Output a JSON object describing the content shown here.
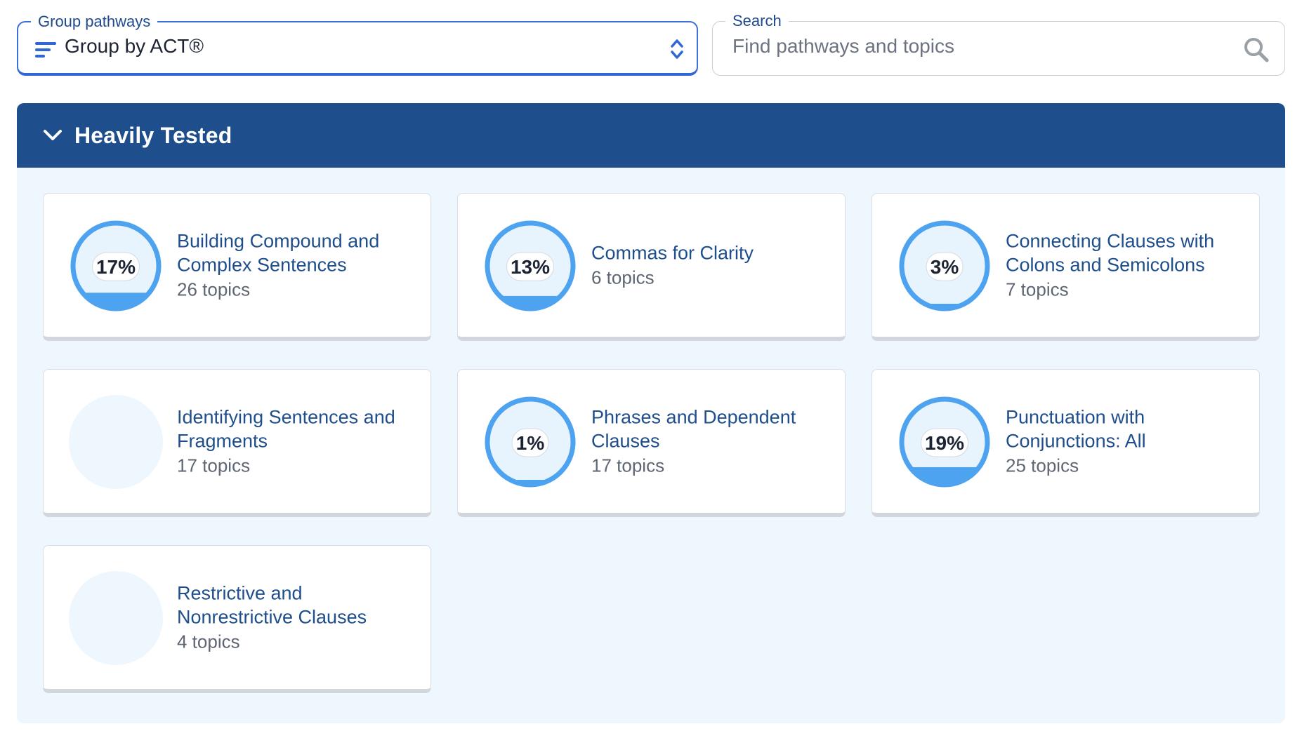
{
  "group_field": {
    "legend": "Group pathways",
    "value": "Group by ACT®"
  },
  "search": {
    "legend": "Search",
    "placeholder": "Find pathways and topics"
  },
  "section": {
    "title": "Heavily Tested"
  },
  "colors": {
    "header": "#1f4e8c",
    "accent": "#4da3f0",
    "section_bg": "#eef6fe"
  },
  "cards": [
    {
      "title": "Building Compound and Complex Sentences",
      "topics": "26 topics",
      "progress_label": "17%",
      "progress": 17
    },
    {
      "title": "Commas for Clarity",
      "topics": "6 topics",
      "progress_label": "13%",
      "progress": 13
    },
    {
      "title": "Connecting Clauses with Colons and Semicolons",
      "topics": "7 topics",
      "progress_label": "3%",
      "progress": 3
    },
    {
      "title": "Identifying Sentences and Fragments",
      "topics": "17 topics",
      "progress_label": "",
      "progress": null
    },
    {
      "title": "Phrases and Dependent Clauses",
      "topics": "17 topics",
      "progress_label": "1%",
      "progress": 1
    },
    {
      "title": "Punctuation with Conjunctions: All",
      "topics": "25 topics",
      "progress_label": "19%",
      "progress": 19
    },
    {
      "title": "Restrictive and Nonrestrictive Clauses",
      "topics": "4 topics",
      "progress_label": "",
      "progress": null
    }
  ]
}
